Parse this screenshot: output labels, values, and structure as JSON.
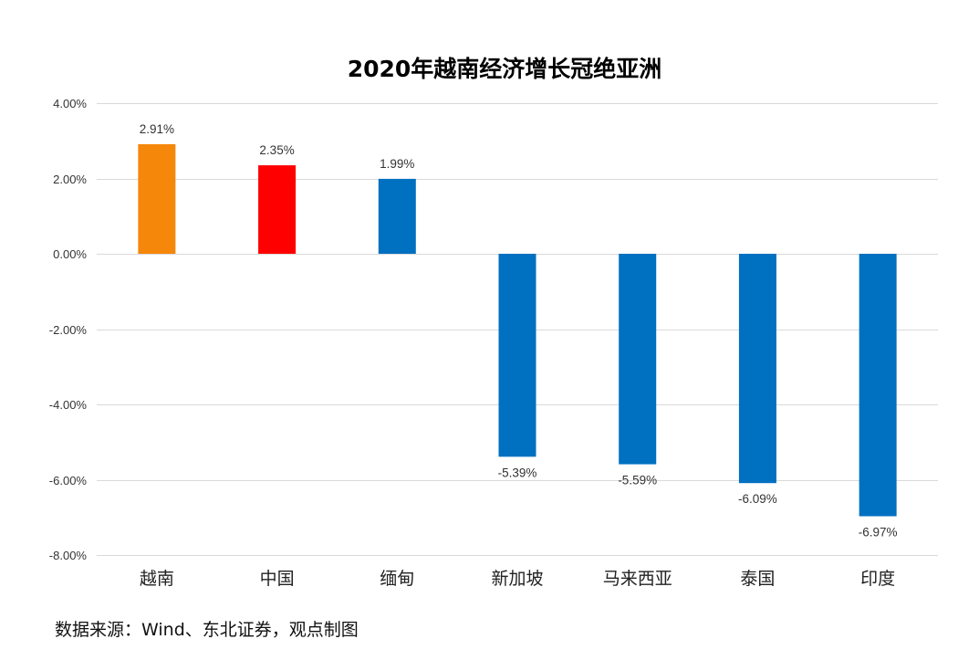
{
  "chart_data": {
    "type": "bar",
    "title": "2020年越南经济增长冠绝亚洲",
    "categories": [
      "越南",
      "中国",
      "缅甸",
      "新加坡",
      "马来西亚",
      "泰国",
      "印度"
    ],
    "values": [
      2.91,
      2.35,
      1.99,
      -5.39,
      -5.59,
      -6.09,
      -6.97
    ],
    "data_labels": [
      "2.91%",
      "2.35%",
      "1.99%",
      "-5.39%",
      "-5.59%",
      "-6.09%",
      "-6.97%"
    ],
    "bar_colors": [
      "#F5870A",
      "#FF0000",
      "#0070C0",
      "#0070C0",
      "#0070C0",
      "#0070C0",
      "#0070C0"
    ],
    "ylim": [
      -8,
      4
    ],
    "y_ticks": [
      4,
      2,
      0,
      -2,
      -4,
      -6,
      -8
    ],
    "y_tick_labels": [
      "4.00%",
      "2.00%",
      "0.00%",
      "-2.00%",
      "-4.00%",
      "-6.00%",
      "-8.00%"
    ],
    "grid": true,
    "legend": "none",
    "xlabel": "",
    "ylabel": ""
  },
  "source": "数据来源：Wind、东北证券，观点制图"
}
